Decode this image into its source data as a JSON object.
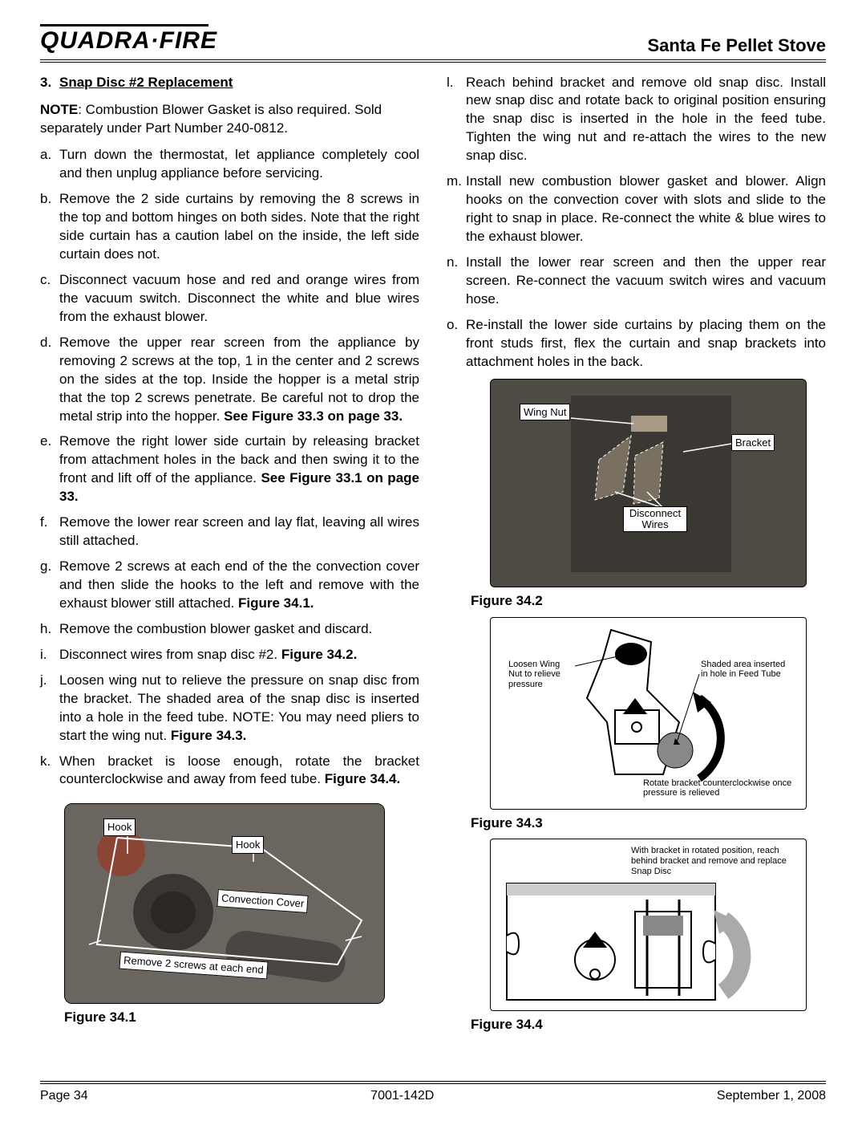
{
  "header": {
    "brand": "QUADRA·FIRE",
    "product": "Santa Fe Pellet Stove"
  },
  "section": {
    "number": "3.",
    "title": "Snap Disc #2 Replacement"
  },
  "note": {
    "label": "NOTE",
    "text": ": Combustion Blower Gasket is also required.  Sold separately under Part Number 240-0812."
  },
  "steps_left": [
    {
      "l": "a.",
      "t": "Turn down the thermostat, let appliance completely cool and then unplug appliance before servicing."
    },
    {
      "l": "b.",
      "t": "Remove the 2 side curtains by removing the 8 screws in the top and bottom hinges on both sides.  Note that the right side curtain has a caution label on the inside, the left side curtain does not."
    },
    {
      "l": "c.",
      "t": "Disconnect vacuum hose and red and orange wires from the vacuum switch.  Disconnect the white and blue wires from the exhaust blower."
    },
    {
      "l": "d.",
      "t": "Remove the upper rear screen from the appliance by removing 2 screws at the top, 1 in the center and 2 screws on the sides at the top.  Inside the hopper is a metal strip that the top 2 screws penetrate.  Be careful not to drop the metal strip into the hopper.  ",
      "b": "See Figure 33.3 on page 33."
    },
    {
      "l": "e.",
      "t": "Remove the right lower side curtain by releasing bracket from attachment holes in the back and then swing it to the front  and lift off of the appliance.  ",
      "b": "See Figure 33.1 on page 33."
    },
    {
      "l": "f.",
      "t": "Remove the lower rear screen and lay flat, leaving all wires still attached."
    },
    {
      "l": "g.",
      "t": "Remove 2 screws at each end of the the convection cover and then slide the hooks to the left and remove with the exhaust blower still attached.  ",
      "b": "Figure 34.1."
    },
    {
      "l": "h.",
      "t": "Remove the combustion blower gasket and discard."
    },
    {
      "l": "i.",
      "t": "Disconnect wires from snap disc #2.  ",
      "b": "Figure 34.2."
    },
    {
      "l": "j.",
      "t": "Loosen wing nut to relieve the pressure on snap disc from the bracket.  The shaded area of the snap disc is inserted into a hole in the feed tube.  NOTE: You may need pliers to start the wing nut. ",
      "b": "Figure 34.3."
    },
    {
      "l": "k.",
      "t": "When bracket is loose enough, rotate the bracket counterclockwise and away from feed tube.  ",
      "b": "Figure 34.4."
    }
  ],
  "steps_right": [
    {
      "l": "l.",
      "t": "Reach behind bracket and remove old snap disc.  Install new snap disc and rotate back to original position ensuring the snap disc is inserted in the hole in the feed tube.  Tighten the wing nut and re-attach the wires to the new snap disc."
    },
    {
      "l": "m.",
      "t": "Install new combustion blower gasket and blower. Align hooks on the convection cover with slots and slide to the right to snap in place.  Re-connect the white & blue wires to the exhaust blower."
    },
    {
      "l": "n.",
      "t": "Install the lower rear screen and then the upper rear screen.  Re-connect the vacuum switch wires and vacuum hose."
    },
    {
      "l": "o.",
      "t": "Re-install the lower side curtains by placing them on the front studs first, flex the curtain and snap brackets into attachment holes in the back."
    }
  ],
  "fig341": {
    "caption": "Figure 34.1",
    "labels": {
      "hook1": "Hook",
      "hook2": "Hook",
      "cover": "Convection Cover",
      "screws": "Remove 2 screws at each end"
    }
  },
  "fig342": {
    "caption": "Figure 34.2",
    "labels": {
      "wing": "Wing Nut",
      "bracket": "Bracket",
      "disc": "Disconnect Wires"
    }
  },
  "fig343": {
    "caption": "Figure 34.3",
    "labels": {
      "loosen": "Loosen Wing Nut to relieve pressure",
      "shaded": "Shaded area inserted in hole in Feed Tube",
      "rotate": "Rotate bracket counterclockwise once pressure is relieved"
    }
  },
  "fig344": {
    "caption": "Figure 34.4",
    "labels": {
      "rot": "With bracket in rotated position, reach behind bracket and remove and replace Snap Disc"
    }
  },
  "footer": {
    "page": "Page  34",
    "doc": "7001-142D",
    "date": "September 1, 2008"
  }
}
